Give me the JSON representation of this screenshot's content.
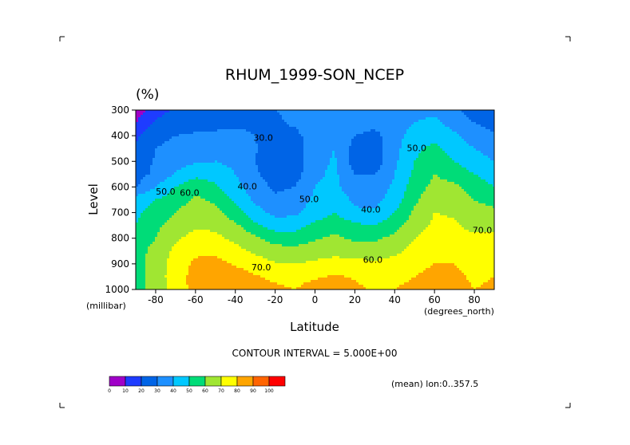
{
  "chart_data": {
    "type": "heatmap",
    "title": "RHUM_1999-SON_NCEP",
    "units_label": "(%)",
    "xlabel": "Latitude",
    "ylabel": "Level",
    "x_unit": "(degrees_north)",
    "y_unit": "(millibar)",
    "xlim": [
      -90,
      90
    ],
    "ylim": [
      1000,
      300
    ],
    "x_ticks": [
      -80,
      -60,
      -40,
      -20,
      0,
      20,
      40,
      60,
      80
    ],
    "x_tick_labels": [
      "-80",
      "-60",
      "-40",
      "-20",
      "0",
      "20",
      "40",
      "60",
      "80"
    ],
    "y_ticks": [
      300,
      400,
      500,
      600,
      700,
      800,
      900,
      1000
    ],
    "y_tick_labels": [
      "300",
      "400",
      "500",
      "600",
      "700",
      "800",
      "900",
      "1000"
    ],
    "contour_interval_text": "CONTOUR INTERVAL = 5.000E+00",
    "mean_text": "(mean) lon:0..357.5",
    "contour_labels": [
      {
        "text": "30.0",
        "lat": -26,
        "lev": 420
      },
      {
        "text": "40.0",
        "lat": -34,
        "lev": 610
      },
      {
        "text": "50.0",
        "lat": -3,
        "lev": 660
      },
      {
        "text": "40.0",
        "lat": 28,
        "lev": 700
      },
      {
        "text": "50.0",
        "lat": 51,
        "lev": 460
      },
      {
        "text": "50.0",
        "lat": -75,
        "lev": 630
      },
      {
        "text": "60.0",
        "lat": -63,
        "lev": 635
      },
      {
        "text": "60.0",
        "lat": 29,
        "lev": 895
      },
      {
        "text": "70.0",
        "lat": -27,
        "lev": 925
      },
      {
        "text": "70.0",
        "lat": 84,
        "lev": 780
      }
    ],
    "grid_levels": [
      300,
      350,
      400,
      450,
      500,
      550,
      600,
      650,
      700,
      750,
      800,
      850,
      900,
      950,
      1000
    ],
    "grid_lats": [
      -90,
      -80,
      -70,
      -60,
      -50,
      -40,
      -30,
      -20,
      -10,
      0,
      10,
      20,
      30,
      40,
      50,
      60,
      70,
      80,
      90
    ],
    "values": [
      [
        5,
        15,
        22,
        22,
        22,
        25,
        27,
        30,
        32,
        33,
        35,
        33,
        32,
        34,
        38,
        38,
        32,
        25,
        20
      ],
      [
        10,
        22,
        26,
        27,
        27,
        28,
        28,
        28,
        32,
        36,
        38,
        35,
        33,
        36,
        40,
        42,
        36,
        30,
        26
      ],
      [
        18,
        28,
        30,
        31,
        32,
        33,
        30,
        24,
        27,
        36,
        40,
        30,
        27,
        36,
        44,
        48,
        42,
        35,
        32
      ],
      [
        22,
        30,
        32,
        34,
        36,
        37,
        31,
        22,
        24,
        37,
        40,
        26,
        25,
        37,
        48,
        52,
        46,
        40,
        36
      ],
      [
        25,
        31,
        35,
        39,
        40,
        38,
        30,
        22,
        24,
        37,
        41,
        25,
        24,
        38,
        50,
        56,
        50,
        44,
        40
      ],
      [
        26,
        32,
        41,
        47,
        45,
        40,
        32,
        24,
        26,
        38,
        42,
        30,
        30,
        40,
        52,
        60,
        56,
        50,
        45
      ],
      [
        29,
        40,
        50,
        57,
        52,
        43,
        35,
        28,
        30,
        40,
        43,
        33,
        33,
        42,
        55,
        63,
        62,
        56,
        50
      ],
      [
        45,
        50,
        55,
        62,
        58,
        48,
        38,
        32,
        34,
        42,
        46,
        38,
        37,
        45,
        58,
        67,
        66,
        60,
        56
      ],
      [
        48,
        55,
        60,
        66,
        63,
        54,
        44,
        37,
        38,
        45,
        50,
        42,
        41,
        50,
        62,
        70,
        69,
        64,
        63
      ],
      [
        50,
        58,
        64,
        69,
        68,
        62,
        52,
        45,
        46,
        52,
        56,
        52,
        50,
        56,
        65,
        72,
        71,
        67,
        68
      ],
      [
        53,
        60,
        69,
        73,
        72,
        68,
        62,
        56,
        55,
        59,
        62,
        58,
        58,
        63,
        70,
        75,
        74,
        72,
        72
      ],
      [
        55,
        64,
        72,
        78,
        77,
        73,
        68,
        64,
        63,
        65,
        67,
        65,
        65,
        68,
        73,
        77,
        76,
        74,
        76
      ],
      [
        56,
        65,
        74,
        82,
        84,
        79,
        75,
        71,
        70,
        72,
        74,
        73,
        72,
        73,
        76,
        80,
        80,
        76,
        78
      ],
      [
        56,
        65,
        75,
        84,
        88,
        85,
        81,
        78,
        77,
        79,
        81,
        79,
        77,
        78,
        80,
        84,
        83,
        78,
        80
      ],
      [
        56,
        65,
        74,
        84,
        88,
        86,
        83,
        82,
        80,
        84,
        86,
        82,
        79,
        80,
        82,
        85,
        84,
        80,
        82
      ]
    ],
    "colorbar": {
      "ticks": [
        "0",
        "10",
        "20",
        "30",
        "40",
        "50",
        "60",
        "70",
        "80",
        "90",
        "100"
      ],
      "colors": [
        "#a000c8",
        "#1e3cff",
        "#0064e6",
        "#1e90ff",
        "#00c8ff",
        "#00dc78",
        "#a0e632",
        "#ffff00",
        "#ffa500",
        "#ff6400",
        "#ff0000"
      ]
    }
  }
}
